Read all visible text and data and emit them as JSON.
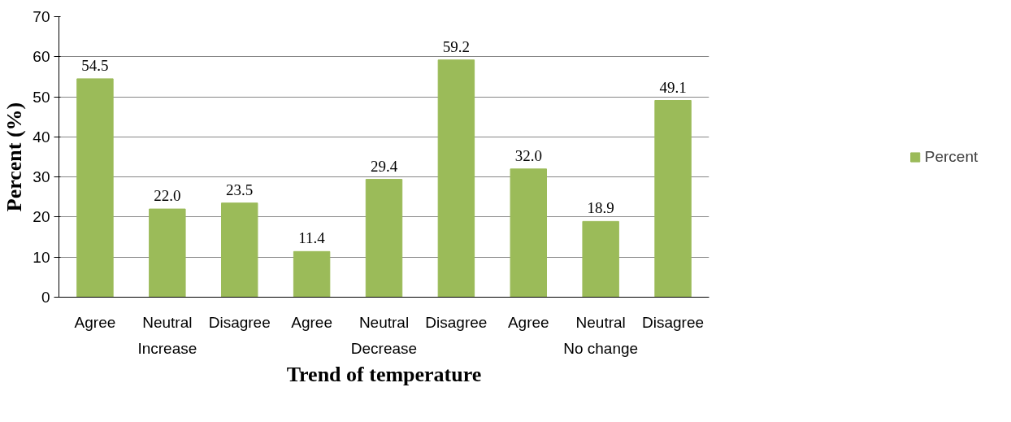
{
  "chart_data": {
    "type": "bar",
    "xlabel": "Trend of temperature",
    "ylabel": "Percent (%)",
    "categories": [
      "Agree",
      "Neutral",
      "Disagree",
      "Agree",
      "Neutral",
      "Disagree",
      "Agree",
      "Neutral",
      "Disagree"
    ],
    "annotations": [
      "Increase",
      "Decrease",
      "No change"
    ],
    "series": [
      {
        "name": "Percent",
        "color": "#9bbb59",
        "values": [
          54.5,
          22.0,
          23.5,
          11.4,
          29.4,
          59.2,
          32.0,
          18.9,
          49.1
        ],
        "value_labels": [
          "54.5",
          "22.0",
          "23.5",
          "11.4",
          "29.4",
          "59.2",
          "32.0",
          "18.9",
          "49.1"
        ]
      }
    ],
    "ylim": [
      0,
      70
    ],
    "yticks": [
      0,
      10,
      20,
      30,
      40,
      50,
      60,
      70
    ],
    "grid": "y",
    "legend": "right"
  }
}
